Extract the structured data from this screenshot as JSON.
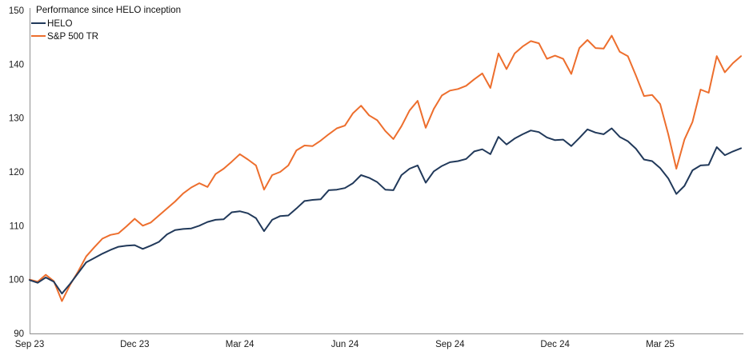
{
  "chart": {
    "title": "Performance since HELO inception"
  },
  "chart_data": {
    "type": "line",
    "title": "Performance since HELO inception",
    "xlabel": "",
    "ylabel": "",
    "ylim": [
      90,
      150
    ],
    "y_ticks": [
      90,
      100,
      110,
      120,
      130,
      140,
      150
    ],
    "x_ticks": [
      {
        "label": "Sep 23",
        "index": 0
      },
      {
        "label": "Dec 23",
        "index": 13
      },
      {
        "label": "Mar 24",
        "index": 26
      },
      {
        "label": "Jun 24",
        "index": 39
      },
      {
        "label": "Sep 24",
        "index": 52
      },
      {
        "label": "Dec 24",
        "index": 65
      },
      {
        "label": "Mar 25",
        "index": 78
      }
    ],
    "grid": false,
    "legend_position": "top-left",
    "series": [
      {
        "name": "HELO",
        "color": "#21395a",
        "values": [
          99.9,
          99.4,
          100.4,
          99.6,
          97.4,
          99.2,
          101.2,
          103.2,
          104.0,
          104.8,
          105.5,
          106.1,
          106.3,
          106.4,
          105.7,
          106.3,
          107.0,
          108.4,
          109.2,
          109.4,
          109.5,
          110.0,
          110.7,
          111.1,
          111.2,
          112.5,
          112.7,
          112.3,
          111.4,
          109.0,
          111.1,
          111.8,
          111.9,
          113.2,
          114.6,
          114.8,
          114.9,
          116.6,
          116.7,
          117.0,
          117.9,
          119.4,
          118.9,
          118.1,
          116.7,
          116.6,
          119.4,
          120.6,
          121.2,
          118.0,
          120.1,
          121.1,
          121.8,
          122.0,
          122.4,
          123.8,
          124.2,
          123.3,
          126.5,
          125.1,
          126.2,
          127.0,
          127.7,
          127.4,
          126.4,
          125.9,
          126.0,
          124.8,
          126.3,
          127.9,
          127.3,
          127.0,
          128.1,
          126.5,
          125.7,
          124.3,
          122.3,
          122.0,
          120.7,
          118.8,
          115.9,
          117.4,
          120.3,
          121.2,
          121.3,
          124.6,
          123.1,
          123.8,
          124.4
        ]
      },
      {
        "name": "S&P 500 TR",
        "color": "#ed6e2d",
        "values": [
          100.0,
          99.6,
          100.9,
          99.7,
          96.0,
          99.0,
          101.5,
          104.3,
          106.0,
          107.6,
          108.3,
          108.6,
          109.9,
          111.3,
          110.0,
          110.6,
          111.9,
          113.2,
          114.5,
          116.0,
          117.1,
          117.9,
          117.2,
          119.6,
          120.6,
          121.9,
          123.3,
          122.3,
          121.2,
          116.7,
          119.4,
          120.0,
          121.2,
          124.0,
          124.9,
          124.8,
          125.8,
          127.0,
          128.1,
          128.6,
          130.9,
          132.3,
          130.5,
          129.6,
          127.6,
          126.1,
          128.5,
          131.4,
          133.2,
          128.2,
          131.7,
          134.2,
          135.1,
          135.4,
          136.0,
          137.2,
          138.3,
          135.6,
          142.0,
          139.1,
          142.0,
          143.3,
          144.3,
          143.9,
          141.0,
          141.6,
          141.0,
          138.2,
          143.0,
          144.5,
          143.0,
          142.9,
          145.3,
          142.3,
          141.5,
          137.9,
          134.1,
          134.3,
          132.6,
          127.0,
          120.6,
          126.0,
          129.3,
          135.3,
          134.7,
          141.5,
          138.5,
          140.2,
          141.5
        ]
      }
    ]
  }
}
